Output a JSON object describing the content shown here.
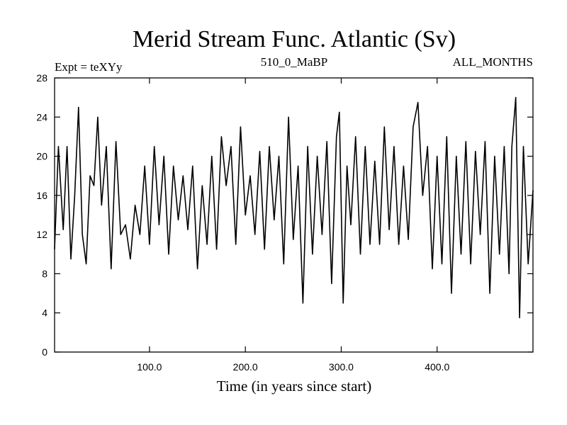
{
  "chart_data": {
    "type": "line",
    "title": "Merid Stream Func. Atlantic (Sv)",
    "header_left": "Expt = teXYy",
    "header_center": "510_0_MaBP",
    "header_right": "ALL_MONTHS",
    "xlabel": "Time (in years since start)",
    "ylabel": "",
    "xlim": [
      1,
      500
    ],
    "ylim": [
      0,
      28
    ],
    "x_ticks": [
      100,
      200,
      300,
      400
    ],
    "x_tick_labels": [
      "100.0",
      "200.0",
      "300.0",
      "400.0"
    ],
    "y_ticks": [
      0,
      4,
      8,
      12,
      16,
      20,
      24,
      28
    ],
    "y_tick_labels": [
      "0",
      "4",
      "8",
      "12",
      "16",
      "20",
      "24",
      "28"
    ],
    "grid": false,
    "series": [
      {
        "color": "#000000",
        "x": [
          1,
          5,
          10,
          14,
          18,
          22,
          26,
          30,
          34,
          38,
          42,
          46,
          50,
          55,
          60,
          65,
          70,
          75,
          80,
          85,
          90,
          95,
          100,
          105,
          110,
          115,
          120,
          125,
          130,
          135,
          140,
          145,
          150,
          155,
          160,
          165,
          170,
          175,
          180,
          185,
          190,
          195,
          200,
          205,
          210,
          215,
          220,
          225,
          230,
          235,
          240,
          245,
          250,
          255,
          260,
          265,
          270,
          275,
          280,
          285,
          290,
          295,
          298,
          302,
          306,
          310,
          315,
          320,
          325,
          330,
          335,
          340,
          345,
          350,
          355,
          360,
          365,
          370,
          375,
          380,
          385,
          390,
          395,
          400,
          405,
          410,
          415,
          420,
          425,
          430,
          435,
          440,
          445,
          450,
          455,
          460,
          465,
          470,
          475,
          478,
          482,
          486,
          490,
          495,
          500
        ],
        "values": [
          10.5,
          21,
          12.5,
          21,
          9.5,
          16,
          25,
          12,
          9,
          18,
          17,
          24,
          15,
          21,
          8.5,
          21.5,
          12,
          13,
          9.5,
          15,
          12,
          19,
          11,
          21,
          13,
          20,
          10,
          19,
          13.5,
          18,
          12.5,
          19,
          8.5,
          17,
          11,
          20,
          10.5,
          22,
          17,
          21,
          11,
          23,
          14,
          18,
          12,
          20.5,
          10.5,
          21,
          13.5,
          20,
          9,
          24,
          11.5,
          19,
          5,
          21,
          10,
          20,
          12,
          21.5,
          7,
          22,
          24.5,
          5,
          19,
          13,
          22,
          10,
          21,
          11,
          19.5,
          11,
          23,
          12.5,
          21,
          11,
          19,
          11.5,
          23,
          25.5,
          16,
          21,
          8.5,
          20,
          9,
          22,
          6,
          20,
          10,
          21.5,
          9,
          20.5,
          12,
          21.5,
          6,
          20,
          10,
          21,
          8,
          21,
          26,
          3.5,
          21,
          9,
          16.5
        ]
      }
    ]
  }
}
